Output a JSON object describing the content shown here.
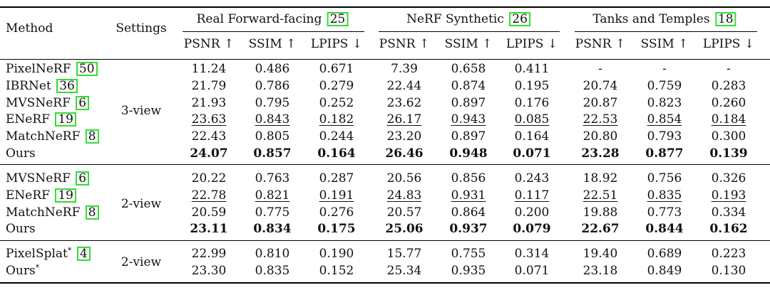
{
  "header": {
    "method": "Method",
    "settings": "Settings",
    "groups": [
      {
        "name": "Real Forward-facing",
        "cite": "25"
      },
      {
        "name": "NeRF Synthetic",
        "cite": "26"
      },
      {
        "name": "Tanks and Temples",
        "cite": "18"
      }
    ],
    "metrics": [
      "PSNR ↑",
      "SSIM ↑",
      "LPIPS ↓",
      "PSNR ↑",
      "SSIM ↑",
      "LPIPS ↓",
      "PSNR ↑",
      "SSIM ↑",
      "LPIPS ↓"
    ]
  },
  "sections": [
    {
      "setting": "3-view",
      "rows": [
        {
          "method": "PixelNeRF",
          "cite": "50",
          "values": [
            "11.24",
            "0.486",
            "0.671",
            "7.39",
            "0.658",
            "0.411",
            "-",
            "-",
            "-"
          ],
          "style": [
            "",
            "",
            "",
            "",
            "",
            "",
            "",
            "",
            ""
          ]
        },
        {
          "method": "IBRNet",
          "cite": "36",
          "values": [
            "21.79",
            "0.786",
            "0.279",
            "22.44",
            "0.874",
            "0.195",
            "20.74",
            "0.759",
            "0.283"
          ],
          "style": [
            "",
            "",
            "",
            "",
            "",
            "",
            "",
            "",
            ""
          ]
        },
        {
          "method": "MVSNeRF",
          "cite": "6",
          "values": [
            "21.93",
            "0.795",
            "0.252",
            "23.62",
            "0.897",
            "0.176",
            "20.87",
            "0.823",
            "0.260"
          ],
          "style": [
            "",
            "",
            "",
            "",
            "",
            "",
            "",
            "",
            ""
          ]
        },
        {
          "method": "ENeRF",
          "cite": "19",
          "values": [
            "23.63",
            "0.843",
            "0.182",
            "26.17",
            "0.943",
            "0.085",
            "22.53",
            "0.854",
            "0.184"
          ],
          "style": [
            "u",
            "u",
            "u",
            "u",
            "u",
            "u",
            "u",
            "u",
            "u"
          ]
        },
        {
          "method": "MatchNeRF",
          "cite": "8",
          "values": [
            "22.43",
            "0.805",
            "0.244",
            "23.20",
            "0.897",
            "0.164",
            "20.80",
            "0.793",
            "0.300"
          ],
          "style": [
            "",
            "",
            "",
            "",
            "",
            "",
            "",
            "",
            ""
          ]
        },
        {
          "method": "Ours",
          "cite": "",
          "values": [
            "24.07",
            "0.857",
            "0.164",
            "26.46",
            "0.948",
            "0.071",
            "23.28",
            "0.877",
            "0.139"
          ],
          "style": [
            "b",
            "b",
            "b",
            "b",
            "b",
            "b",
            "b",
            "b",
            "b"
          ]
        }
      ]
    },
    {
      "setting": "2-view",
      "rows": [
        {
          "method": "MVSNeRF",
          "cite": "6",
          "values": [
            "20.22",
            "0.763",
            "0.287",
            "20.56",
            "0.856",
            "0.243",
            "18.92",
            "0.756",
            "0.326"
          ],
          "style": [
            "",
            "",
            "",
            "",
            "",
            "",
            "",
            "",
            ""
          ]
        },
        {
          "method": "ENeRF",
          "cite": "19",
          "values": [
            "22.78",
            "0.821",
            "0.191",
            "24.83",
            "0.931",
            "0.117",
            "22.51",
            "0.835",
            "0.193"
          ],
          "style": [
            "u",
            "u",
            "u",
            "u",
            "u",
            "u",
            "u",
            "u",
            "u"
          ]
        },
        {
          "method": "MatchNeRF",
          "cite": "8",
          "values": [
            "20.59",
            "0.775",
            "0.276",
            "20.57",
            "0.864",
            "0.200",
            "19.88",
            "0.773",
            "0.334"
          ],
          "style": [
            "",
            "",
            "",
            "",
            "",
            "",
            "",
            "",
            ""
          ]
        },
        {
          "method": "Ours",
          "cite": "",
          "values": [
            "23.11",
            "0.834",
            "0.175",
            "25.06",
            "0.937",
            "0.079",
            "22.67",
            "0.844",
            "0.162"
          ],
          "style": [
            "b",
            "b",
            "b",
            "b",
            "b",
            "b",
            "b",
            "b",
            "b"
          ]
        }
      ]
    },
    {
      "setting": "2-view",
      "rows": [
        {
          "method": "PixelSplat",
          "sup": "*",
          "cite": "4",
          "values": [
            "22.99",
            "0.810",
            "0.190",
            "15.77",
            "0.755",
            "0.314",
            "19.40",
            "0.689",
            "0.223"
          ],
          "style": [
            "",
            "",
            "",
            "",
            "",
            "",
            "",
            "",
            ""
          ]
        },
        {
          "method": "Ours",
          "sup": "*",
          "cite": "",
          "values": [
            "23.30",
            "0.835",
            "0.152",
            "25.34",
            "0.935",
            "0.071",
            "23.18",
            "0.849",
            "0.130"
          ],
          "style": [
            "",
            "",
            "",
            "",
            "",
            "",
            "",
            "",
            ""
          ]
        }
      ]
    }
  ],
  "colors": {
    "citation_box": "#33dd33",
    "text": "#111111",
    "rule": "#000000"
  }
}
